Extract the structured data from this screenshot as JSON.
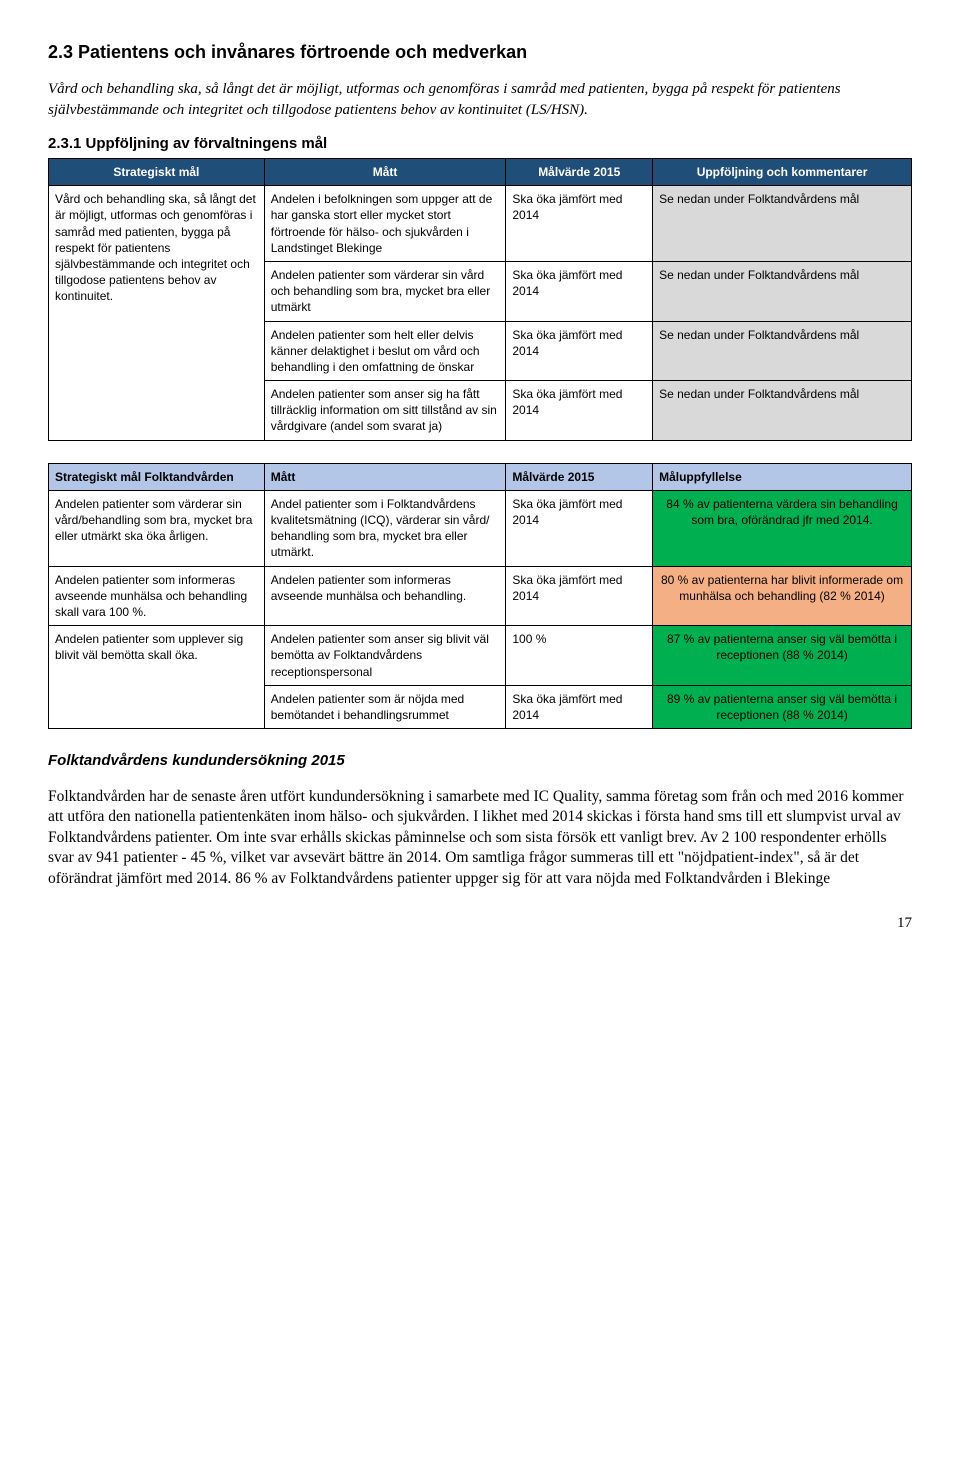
{
  "section": {
    "heading": "2.3 Patientens och invånares förtroende och medverkan",
    "intro": "Vård och behandling ska, så långt det är möjligt, utformas och genomföras i samråd med patienten, bygga på respekt för patientens självbestämmande och integritet och tillgodose patientens behov av kontinuitet (LS/HSN).",
    "subheading": "2.3.1 Uppföljning av förvaltningens mål"
  },
  "table1": {
    "headers": [
      "Strategiskt mål",
      "Mått",
      "Målvärde 2015",
      "Uppföljning och kommentarer"
    ],
    "left_cell": "Vård och behandling ska, så långt det är möjligt, utformas och genomföras i samråd med patienten, bygga på respekt för patientens självbestämmande och integritet och tillgodose patientens behov av kontinuitet.",
    "rows": [
      {
        "matt": "Andelen i befolkningen som uppger att de har ganska stort eller mycket stort förtroende för hälso- och sjukvården i Landstinget Blekinge",
        "mal": "Ska öka jämfört med 2014",
        "komm": "Se nedan under Folktandvårdens mål"
      },
      {
        "matt": "Andelen patienter som värderar sin vård och behandling som bra, mycket bra eller utmärkt",
        "mal": "Ska öka jämfört med 2014",
        "komm": "Se nedan under Folktandvårdens mål"
      },
      {
        "matt": "Andelen patienter som helt eller delvis känner delaktighet i beslut om vård och behandling i den omfattning de önskar",
        "mal": "Ska öka jämfört med 2014",
        "komm": "Se nedan under Folktandvårdens mål"
      },
      {
        "matt": "Andelen patienter som anser sig ha fått tillräcklig information om sitt tillstånd av sin vårdgivare (andel som svarat ja)",
        "mal": "Ska öka jämfört med 2014",
        "komm": "Se nedan under Folktandvårdens mål"
      }
    ]
  },
  "table2": {
    "headers": [
      "Strategiskt mål Folktandvården",
      "Mått",
      "Målvärde 2015",
      "Måluppfyllelse"
    ],
    "rows": [
      {
        "goal": "Andelen patienter som värderar sin vård/behandling som bra, mycket bra eller utmärkt ska öka årligen.",
        "matt": "Andel patienter som i Folktandvårdens kvalitetsmätning (ICQ), värderar sin vård/ behandling som bra, mycket bra eller utmärkt.",
        "mal": "Ska öka jämfört med 2014",
        "res": "84 % av patienterna värdera sin behandling som bra, oförändrad jfr med 2014.",
        "res_class": "cell-green"
      },
      {
        "goal": "Andelen patienter som informeras avseende munhälsa och behandling skall vara 100 %.",
        "matt": "Andelen patienter som informeras avseende munhälsa och behandling.",
        "mal": "Ska öka jämfört med 2014",
        "res": "80 % av patienterna har blivit informerade om munhälsa och behandling (82 % 2014)",
        "res_class": "cell-orange"
      },
      {
        "goal": "Andelen patienter som upplever sig blivit väl bemötta skall öka.",
        "matt": "Andelen patienter som anser sig blivit väl bemötta av Folktandvårdens receptionspersonal",
        "mal": "100 %",
        "res": "87 % av patienterna anser sig väl bemötta i receptionen (88 % 2014)",
        "res_class": "cell-green",
        "rowspan_goal": 2
      },
      {
        "goal": "",
        "matt": "Andelen patienter som är nöjda med bemötandet i behandlingsrummet",
        "mal": "Ska öka jämfört med 2014",
        "res": "89 % av patienterna anser sig väl bemötta i receptionen (88 % 2014)",
        "res_class": "cell-green"
      }
    ]
  },
  "para": {
    "title": "Folktandvårdens kundundersökning 2015",
    "text": "Folktandvården har de senaste åren utfört kundundersökning i samarbete med IC Quality, samma företag som från och med 2016 kommer att utföra den nationella patientenkäten inom hälso- och sjukvården. I likhet med 2014 skickas i första hand sms till ett slumpvist urval av Folktandvårdens patienter. Om inte svar erhålls skickas påminnelse och som sista försök ett vanligt brev. Av 2 100 respondenter erhölls svar av 941 patienter - 45 %, vilket var avsevärt bättre än 2014. Om samtliga frågor summeras till ett \"nöjdpatient-index\", så är det oförändrat jämfört med 2014. 86 % av Folktandvårdens patienter uppger sig för att vara nöjda med Folktandvården i Blekinge"
  },
  "page_number": "17"
}
